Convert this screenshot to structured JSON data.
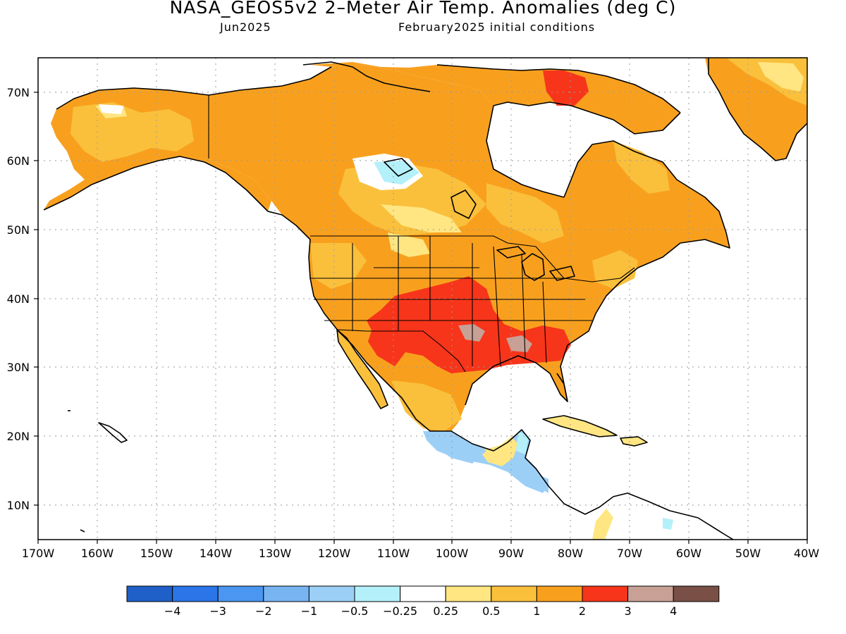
{
  "title": "NASA_GEOS5v2 2–Meter Air Temp. Anomalies (deg C)",
  "subtitle_left": "Jun2025",
  "subtitle_right": "February2025 initial conditions",
  "map": {
    "region": "North America",
    "lon_range": [
      -170,
      -40
    ],
    "lat_range": [
      5,
      75
    ],
    "grid": true,
    "lon_ticks": [
      "170W",
      "160W",
      "150W",
      "140W",
      "130W",
      "120W",
      "110W",
      "100W",
      "90W",
      "80W",
      "70W",
      "60W",
      "50W",
      "40W"
    ],
    "lat_ticks": [
      "10N",
      "20N",
      "30N",
      "40N",
      "50N",
      "60N",
      "70N"
    ]
  },
  "colorbar": {
    "colors": [
      "#1f5fc8",
      "#2b75e8",
      "#4a96f0",
      "#78b4f2",
      "#9ccff6",
      "#b4f0fa",
      "#ffffff",
      "#ffe682",
      "#fac03c",
      "#f8a01e",
      "#f7351a",
      "#c8a096",
      "#7a5046"
    ],
    "labels": [
      "−4",
      "−3",
      "−2",
      "−1",
      "−0.5",
      "−0.25",
      "0.25",
      "0.5",
      "1",
      "2",
      "3",
      "4"
    ]
  },
  "colors": {
    "land_default": "#f8a01e",
    "warm_light": "#fac03c",
    "warm_pale": "#ffe682",
    "hot": "#f7351a",
    "very_hot": "#c8a096",
    "cool_pale": "#b4f0fa",
    "cool": "#9ccff6"
  }
}
